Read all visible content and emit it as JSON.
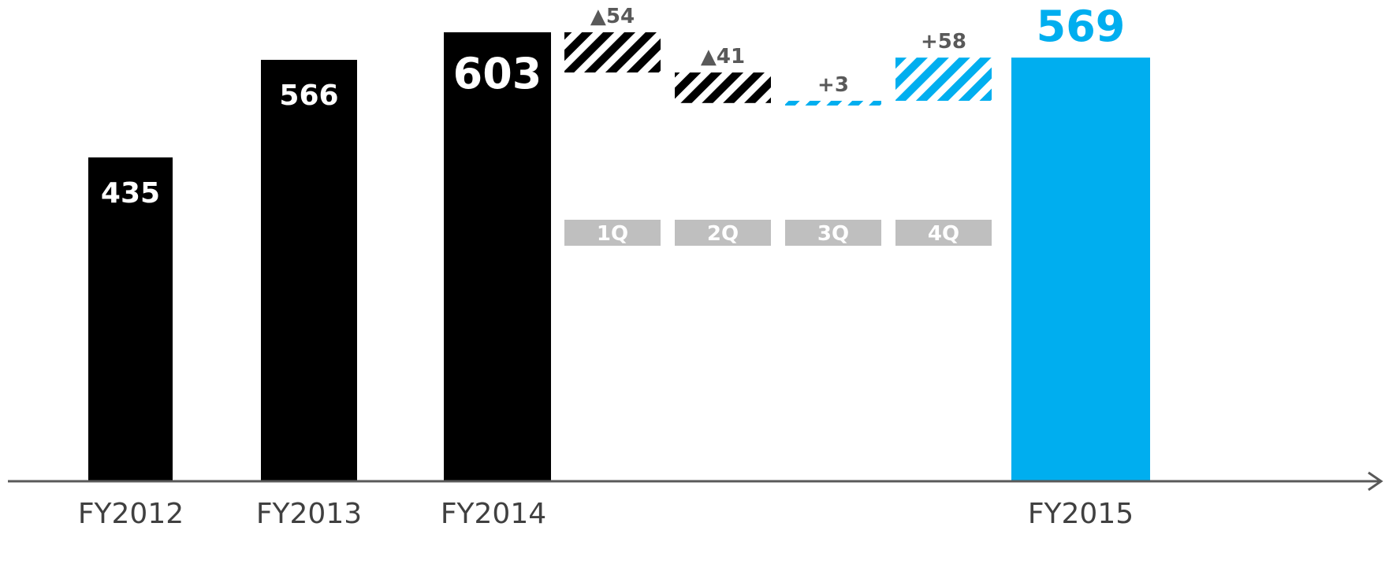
{
  "chart_data": {
    "type": "bar",
    "subtype": "waterfall",
    "categories": [
      "FY2012",
      "FY2013",
      "FY2014",
      "1Q",
      "2Q",
      "3Q",
      "4Q",
      "FY2015"
    ],
    "totals": [
      {
        "category": "FY2012",
        "value": 435,
        "label": "435"
      },
      {
        "category": "FY2013",
        "value": 566,
        "label": "566"
      },
      {
        "category": "FY2014",
        "value": 603,
        "label": "603"
      },
      {
        "category": "FY2015",
        "value": 569,
        "label": "569"
      }
    ],
    "changes": [
      {
        "category": "1Q",
        "value": -54,
        "label": "▲54"
      },
      {
        "category": "2Q",
        "value": -41,
        "label": "▲41"
      },
      {
        "category": "3Q",
        "value": 3,
        "label": "+3"
      },
      {
        "category": "4Q",
        "value": 58,
        "label": "+58"
      }
    ],
    "colors": {
      "total": "#000000",
      "highlight": "#00aeef",
      "negative_change": "#000000",
      "positive_change": "#00aeef",
      "quarter_badge": "#bfbfbf",
      "axis": "#595959",
      "delta_label": "#595959",
      "tick_label": "#404040"
    },
    "ylim": [
      0,
      603
    ],
    "grid": false,
    "legend": "none"
  }
}
